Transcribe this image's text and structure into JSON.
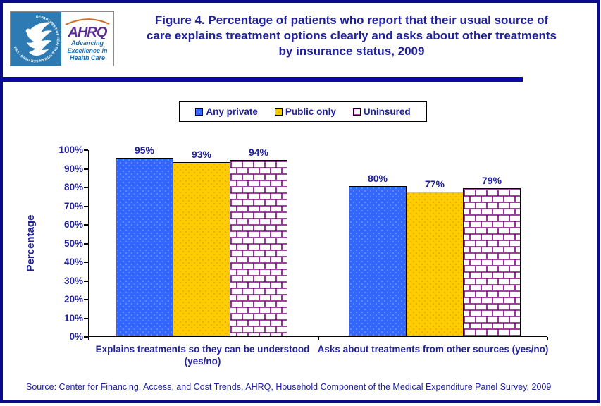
{
  "header": {
    "title": "Figure 4. Percentage of patients who report that their usual source of care explains treatment options clearly and asks about other treatments by insurance status, 2009"
  },
  "logo": {
    "seal_text": "DEPARTMENT OF HEALTH & HUMAN SERVICES • USA",
    "ahrq": "AHRQ",
    "tagline_1": "Advancing",
    "tagline_2": "Excellence in",
    "tagline_3": "Health Care"
  },
  "footer": {
    "source": "Source: Center for Financing, Access, and Cost Trends, AHRQ, Household Component of the Medical Expenditure Panel Survey, 2009"
  },
  "colors": {
    "navy_text": "#21219E",
    "divider": "#0A0AA0",
    "frame_border": "#0A0A8E",
    "axis": "#000000",
    "any_private": "#3366FF",
    "public_only": "#FFCC00",
    "uninsured_pattern": "#800080"
  },
  "chart_data": {
    "type": "bar",
    "title": "Figure 4. Percentage of patients who report that their usual source of care explains treatment options clearly and asks about other treatments by insurance status, 2009",
    "categories": [
      "Explains treatments so they can be understood (yes/no)",
      "Asks about treatments from other sources (yes/no)"
    ],
    "series": [
      {
        "name": "Any private",
        "color": "#3366FF",
        "pattern": "dots",
        "values": [
          95,
          80
        ]
      },
      {
        "name": "Public only",
        "color": "#FFCC00",
        "pattern": "dots",
        "values": [
          93,
          77
        ]
      },
      {
        "name": "Uninsured",
        "color": "#FFFFFF",
        "pattern": "bricks",
        "pattern_color": "#800080",
        "values": [
          94,
          79
        ]
      }
    ],
    "value_suffix": "%",
    "xlabel": "",
    "ylabel": "Percentage",
    "ylim": [
      0,
      100
    ],
    "ytick_step": 10,
    "grid": false,
    "legend_position": "top-center"
  }
}
